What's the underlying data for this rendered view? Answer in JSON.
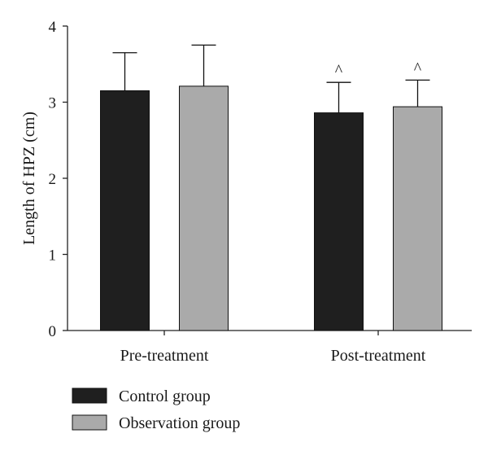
{
  "chart_data": {
    "type": "bar",
    "title": "",
    "xlabel": "",
    "ylabel": "Length of HPZ (cm)",
    "ylim": [
      0,
      4
    ],
    "yticks": [
      0,
      1,
      2,
      3,
      4
    ],
    "categories": [
      "Pre-treatment",
      "Post-treatment"
    ],
    "series": [
      {
        "name": "Control group",
        "color": "#1f1f1f",
        "values": [
          3.15,
          2.86
        ],
        "error": [
          0.5,
          0.4
        ],
        "markers": [
          "",
          "^"
        ]
      },
      {
        "name": "Observation group",
        "color": "#aaaaaa",
        "values": [
          3.21,
          2.94
        ],
        "error": [
          0.54,
          0.35
        ],
        "markers": [
          "",
          "^"
        ]
      }
    ],
    "legend_position": "bottom-left",
    "grid": false
  }
}
